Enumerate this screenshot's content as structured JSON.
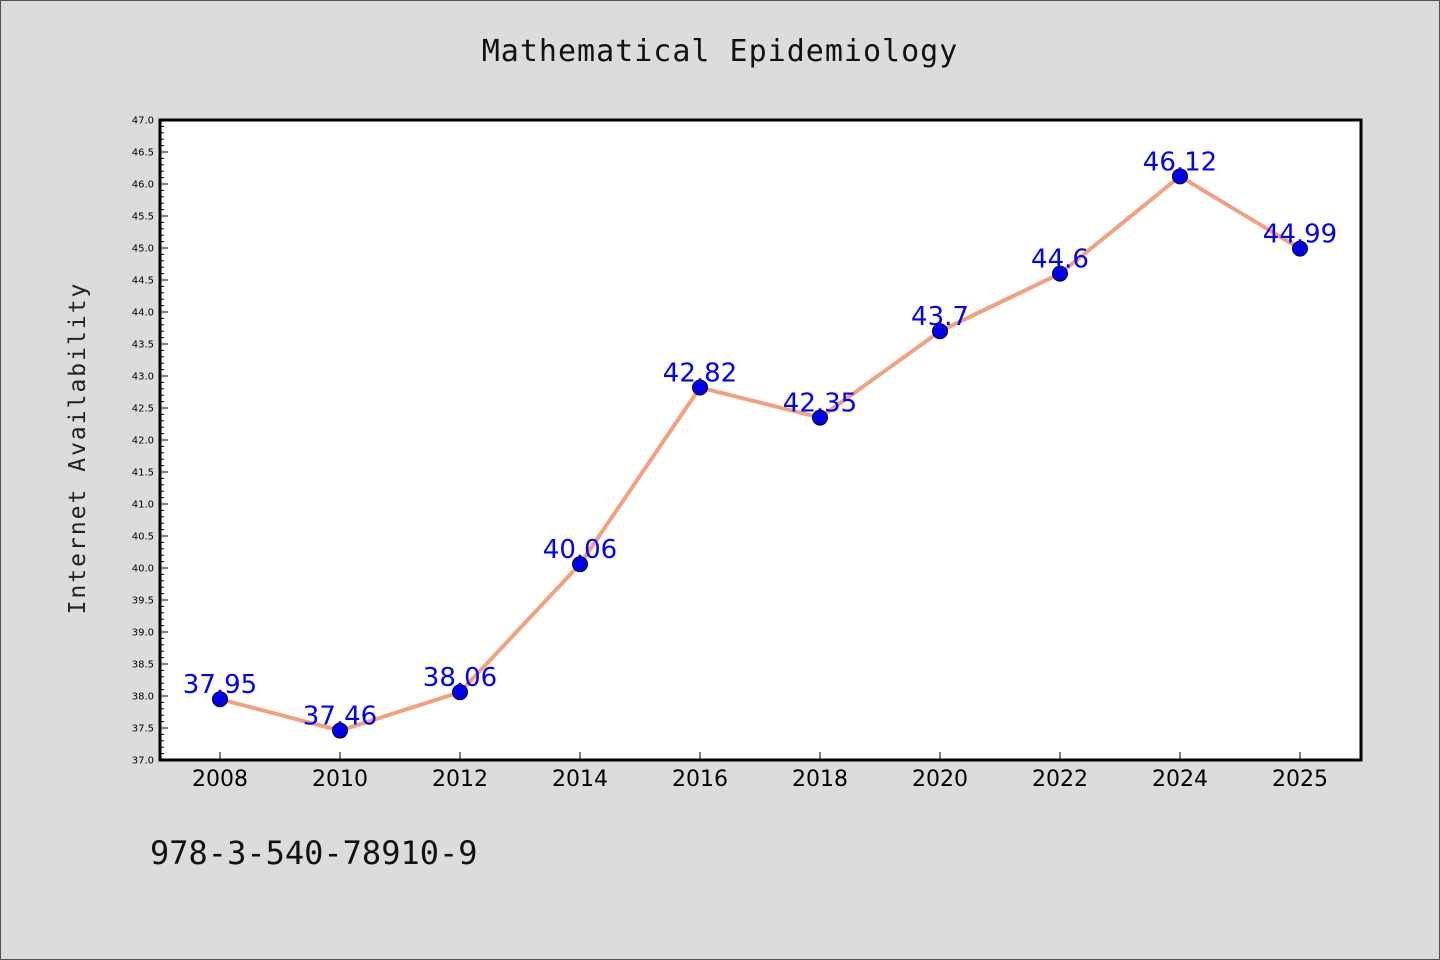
{
  "colors": {
    "background": "#dcdcdc",
    "plot_area": "#ffffff",
    "line": "#f4a07f",
    "marker": "#0000ee",
    "data_label": "#0000ff",
    "axis": "#000000"
  },
  "footer": {
    "code": "978-3-540-78910-9"
  },
  "chart_data": {
    "type": "line",
    "title": "Mathematical Epidemiology",
    "xlabel": "",
    "ylabel": "Internet Availability",
    "categories": [
      "2008",
      "2010",
      "2012",
      "2014",
      "2016",
      "2018",
      "2020",
      "2022",
      "2024",
      "2025"
    ],
    "series": [
      {
        "values": [
          37.95,
          37.46,
          38.06,
          40.06,
          42.82,
          42.35,
          43.7,
          44.6,
          46.12,
          44.99
        ],
        "labels": [
          "37.95",
          "37.46",
          "38.06",
          "40.06",
          "42.82",
          "42.35",
          "43.7",
          "44.6",
          "46.12",
          "44.99"
        ]
      }
    ],
    "ylim": [
      37.0,
      47.0
    ],
    "ytick_step": 0.5,
    "grid": false,
    "legend": "none",
    "marker": "circle"
  }
}
